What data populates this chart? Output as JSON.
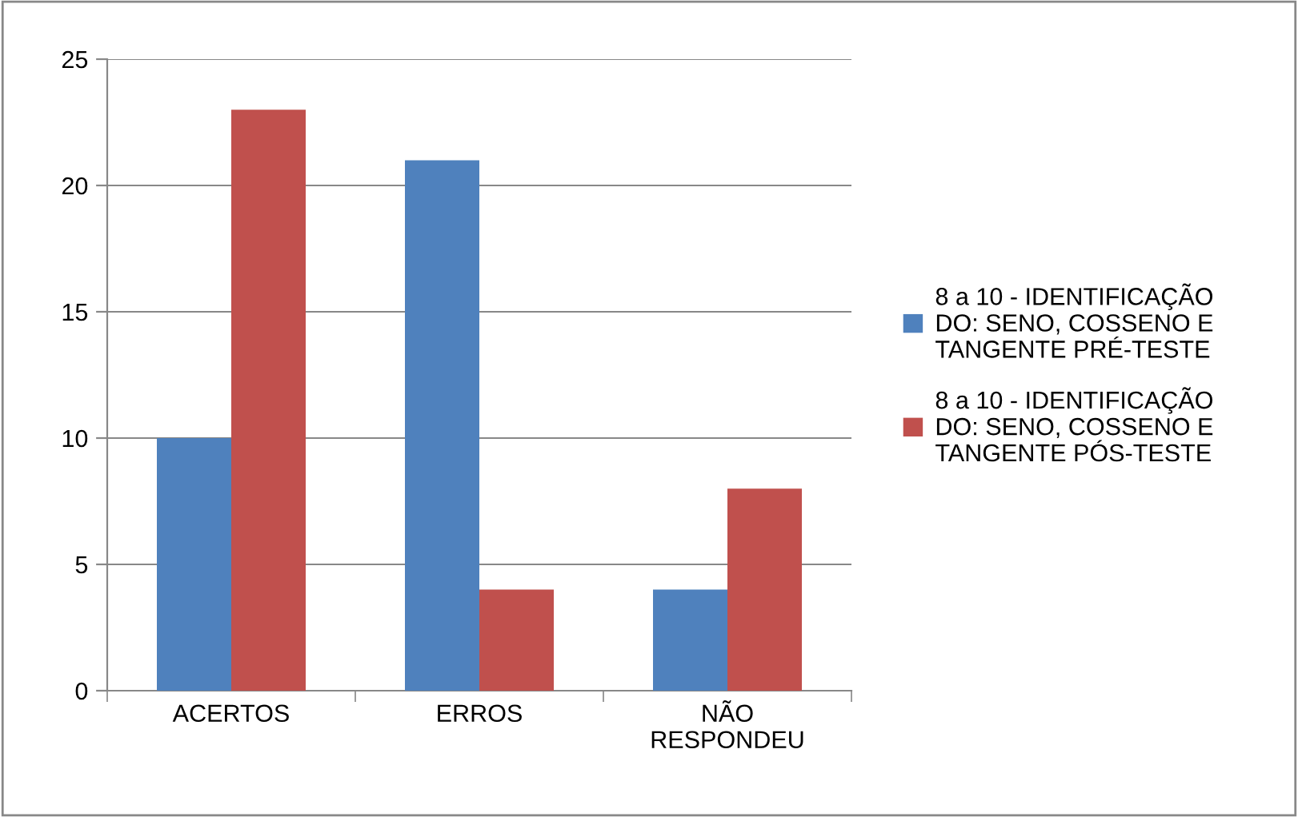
{
  "chart_data": {
    "type": "bar",
    "categories": [
      "ACERTOS",
      "ERROS",
      "NÃO\nRESPONDEU"
    ],
    "series": [
      {
        "name": "8 a 10 - IDENTIFICAÇÃO\nDO: SENO, COSSENO E\nTANGENTE PRÉ-TESTE",
        "color": "#4f81bd",
        "values": [
          10,
          21,
          4
        ]
      },
      {
        "name": "8 a 10 - IDENTIFICAÇÃO\nDO: SENO, COSSENO E\nTANGENTE PÓS-TESTE",
        "color": "#c0504d",
        "values": [
          23,
          4,
          8
        ]
      }
    ],
    "ylim": [
      0,
      25
    ],
    "yticks": [
      0,
      5,
      10,
      15,
      20,
      25
    ],
    "grid": "y",
    "legend": "right"
  }
}
